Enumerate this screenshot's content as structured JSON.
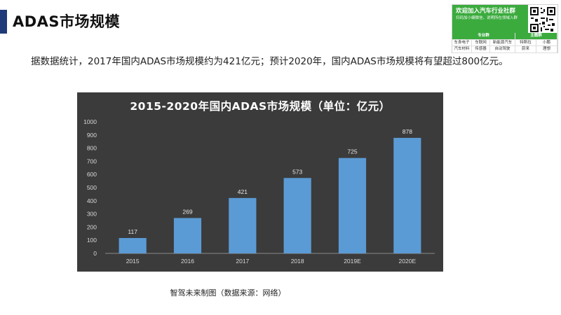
{
  "slide": {
    "title": "ADAS市场规模",
    "intro": "据数据统计，2017年国内ADAS市场规模约为421亿元；预计2020年，国内ADAS市场规模将有望超过800亿元。",
    "caption": "智驾未来制图（数据来源：网络）"
  },
  "ad": {
    "title": "欢迎加入汽车行业社群",
    "subtitle": "扫码加小编微信，说明所在领域入群",
    "headers": [
      "专业群",
      "主题群"
    ],
    "row1": [
      "车身电子",
      "车联网",
      "新能源汽车",
      "特斯拉",
      "小鹏"
    ],
    "row2": [
      "汽车材料",
      "传感器",
      "自动驾驶",
      "蔚来",
      "理想"
    ],
    "accent": "#3bab3e"
  },
  "chart_data": {
    "type": "bar",
    "title": "2015-2020年国内ADAS市场规模（单位：亿元）",
    "categories": [
      "2015",
      "2016",
      "2017",
      "2018",
      "2019E",
      "2020E"
    ],
    "values": [
      117,
      269,
      421,
      573,
      725,
      878
    ],
    "ylim": [
      0,
      1000
    ],
    "yticks": [
      0,
      100,
      200,
      300,
      400,
      500,
      600,
      700,
      800,
      900,
      1000
    ],
    "grid": false,
    "bar_color": "#5b9bd5",
    "background": "#3b3b3b"
  }
}
